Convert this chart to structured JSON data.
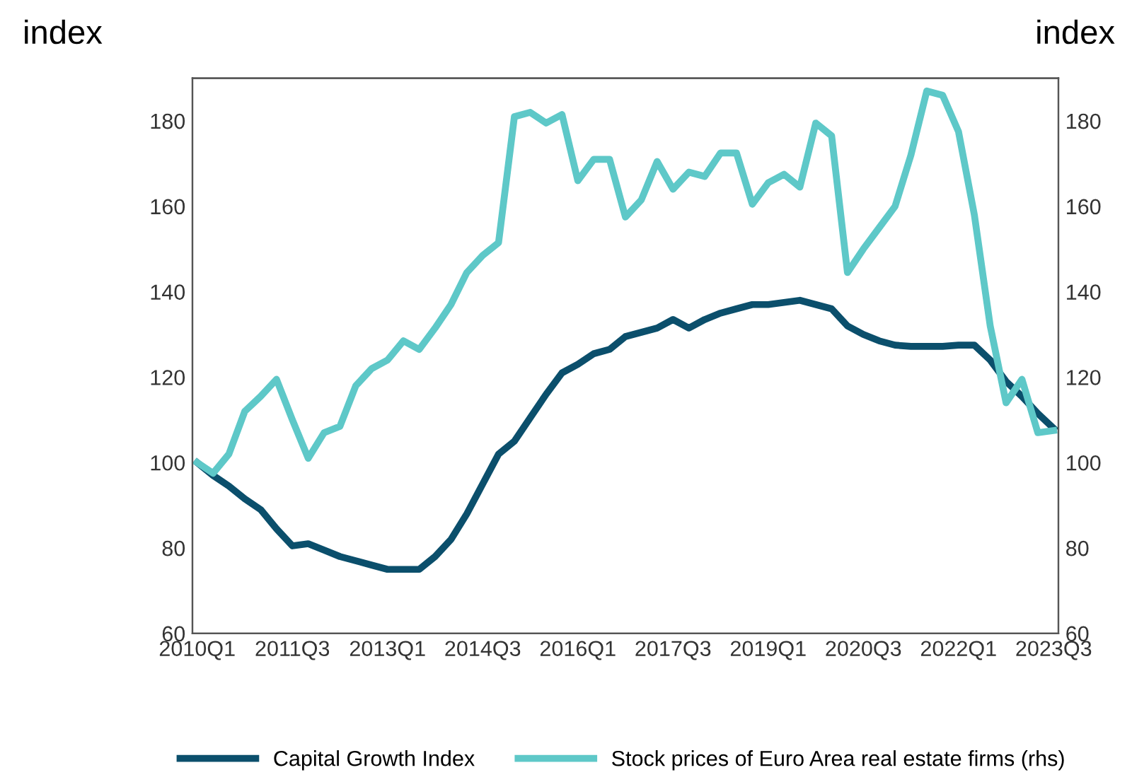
{
  "chart_data": {
    "type": "line",
    "ylabel": "index",
    "y2label": "index",
    "categories": [
      "2010Q1",
      null,
      null,
      null,
      null,
      null,
      "2011Q3",
      null,
      null,
      null,
      null,
      null,
      "2013Q1",
      null,
      null,
      null,
      null,
      null,
      "2014Q3",
      null,
      null,
      null,
      null,
      null,
      "2016Q1",
      null,
      null,
      null,
      null,
      null,
      "2017Q3",
      null,
      null,
      null,
      null,
      null,
      "2019Q1",
      null,
      null,
      null,
      null,
      null,
      "2020Q3",
      null,
      null,
      null,
      null,
      null,
      "2022Q1",
      null,
      null,
      null,
      null,
      null,
      "2023Q3"
    ],
    "series": [
      {
        "name": "Capital Growth Index",
        "color": "#0b4f6c",
        "values": [
          100,
          97,
          94.5,
          91.5,
          89,
          84.5,
          80.5,
          81,
          79.5,
          78,
          77,
          76,
          75,
          75,
          75,
          78,
          82,
          88,
          95,
          102,
          105,
          110.5,
          116,
          121,
          123,
          125.5,
          126.5,
          129.5,
          130.5,
          131.5,
          133.5,
          131.5,
          133.5,
          135,
          136,
          137,
          137,
          137.5,
          138,
          137,
          136,
          132,
          130,
          128.5,
          127.5,
          127.2,
          127.2,
          127.2,
          127.5,
          127.5,
          124,
          119,
          115.5,
          111.5,
          108
        ]
      },
      {
        "name": "Stock prices of Euro Area real estate firms (rhs)",
        "color": "#5ec8c8",
        "axis": "y2",
        "values": [
          100,
          97.5,
          102,
          112,
          115.5,
          119.5,
          110,
          101,
          107,
          108.5,
          118,
          122,
          124,
          128.5,
          126.5,
          131.5,
          137,
          144.5,
          148.5,
          151.5,
          181,
          182,
          179.5,
          181.5,
          166,
          171,
          171,
          157.5,
          161.5,
          170.5,
          164,
          168,
          167,
          172.5,
          172.5,
          160.5,
          165.5,
          167.5,
          164.5,
          179.5,
          176.5,
          144.5,
          150,
          155,
          160,
          172,
          187,
          186,
          177.5,
          158,
          132,
          114,
          119.5,
          107,
          107.5
        ]
      }
    ],
    "ylim": [
      60,
      190
    ],
    "yticks": [
      60,
      80,
      100,
      120,
      140,
      160,
      180
    ],
    "y2lim": [
      60,
      190
    ],
    "y2ticks": [
      60,
      80,
      100,
      120,
      140,
      160,
      180
    ],
    "grid": false,
    "legend": "bottom",
    "marker": "none",
    "line_style": "solid"
  }
}
